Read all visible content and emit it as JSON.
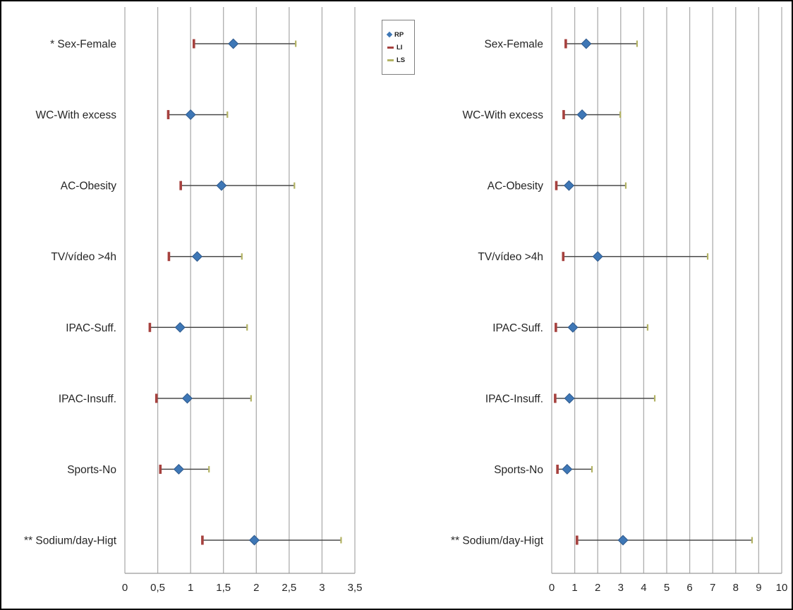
{
  "figure": {
    "background": "#ffffff",
    "border_color": "#000000"
  },
  "legend": {
    "items": [
      {
        "label": "RP",
        "marker": "diamond",
        "color": "#3E77B6"
      },
      {
        "label": "LI",
        "marker": "dash",
        "color": "#A6413E"
      },
      {
        "label": "LS",
        "marker": "dash",
        "color": "#B3B364"
      }
    ]
  },
  "colors": {
    "rp": "#3E77B6",
    "rp_stroke": "#2E598C",
    "li": "#A6413E",
    "ls": "#B3B364",
    "errorbar": "#4A4A4A",
    "gridline": "#ADADAD",
    "axis": "#9A9A9A",
    "text": "#262626"
  },
  "chart_data": [
    {
      "type": "scatter",
      "panel": "left",
      "title": "",
      "xlabel": "",
      "ylabel": "",
      "xlim": [
        0,
        3.5
      ],
      "xticks": [
        0,
        0.5,
        1,
        1.5,
        2,
        2.5,
        3,
        3.5
      ],
      "xtick_labels": [
        "0",
        "0,5",
        "1",
        "1,5",
        "2",
        "2,5",
        "3",
        "3,5"
      ],
      "grid": true,
      "legend_position": "top-right-of-panel",
      "categories": [
        "* Sex-Female",
        "WC-With excess",
        "AC-Obesity",
        "TV/vídeo >4h",
        "IPAC-Suff.",
        "IPAC-Insuff.",
        "Sports-No",
        "** Sodium/day-Higt"
      ],
      "series": [
        {
          "name": "RP",
          "values": [
            1.65,
            1.0,
            1.47,
            1.1,
            0.84,
            0.95,
            0.82,
            1.97
          ]
        },
        {
          "name": "LI",
          "values": [
            1.05,
            0.66,
            0.85,
            0.67,
            0.38,
            0.48,
            0.54,
            1.18
          ]
        },
        {
          "name": "LS",
          "values": [
            2.6,
            1.56,
            2.58,
            1.78,
            1.86,
            1.92,
            1.28,
            3.29
          ]
        }
      ]
    },
    {
      "type": "scatter",
      "panel": "right",
      "title": "",
      "xlabel": "",
      "ylabel": "",
      "xlim": [
        0,
        10
      ],
      "xticks": [
        0,
        1,
        2,
        3,
        4,
        5,
        6,
        7,
        8,
        9,
        10
      ],
      "xtick_labels": [
        "0",
        "1",
        "2",
        "3",
        "4",
        "5",
        "6",
        "7",
        "8",
        "9",
        "10"
      ],
      "grid": true,
      "categories": [
        "Sex-Female",
        "WC-With excess",
        "AC-Obesity",
        "TV/vídeo >4h",
        "IPAC-Suff.",
        "IPAC-Insuff.",
        "Sports-No",
        "** Sodium/day-Higt"
      ],
      "series": [
        {
          "name": "RP",
          "values": [
            1.5,
            1.32,
            0.75,
            2.0,
            0.92,
            0.77,
            0.67,
            3.1
          ]
        },
        {
          "name": "LI",
          "values": [
            0.61,
            0.52,
            0.2,
            0.5,
            0.18,
            0.15,
            0.25,
            1.1
          ]
        },
        {
          "name": "LS",
          "values": [
            3.71,
            2.98,
            3.22,
            6.78,
            4.17,
            4.48,
            1.75,
            8.71
          ]
        }
      ]
    }
  ]
}
